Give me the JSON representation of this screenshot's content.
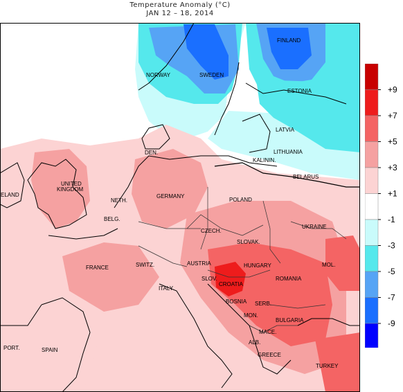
{
  "header": {
    "title": "Temperature Anomaly (°C)",
    "period": "JAN 12 – 18, 2014"
  },
  "colors": {
    "c_m9": "#0000ff",
    "c_m7": "#1a6fff",
    "c_m5": "#56a4f5",
    "c_m3": "#55e8ec",
    "c_m1": "#c9fbfb",
    "c_0": "#ffffff",
    "c_p1": "#fcd3d3",
    "c_p3": "#f5a1a1",
    "c_p5": "#f46464",
    "c_p7": "#ee1c1c",
    "c_p9": "#c80000",
    "water": "#ffffff",
    "coast": "#000000"
  },
  "legend": {
    "ticks": [
      "+9",
      "+7",
      "+5",
      "+3",
      "+1",
      "-1",
      "-3",
      "-5",
      "-7",
      "-9"
    ]
  },
  "countries": [
    {
      "label": "FINLAND"
    },
    {
      "label": "NORWAY"
    },
    {
      "label": "SWEDEN"
    },
    {
      "label": "ESTONIA"
    },
    {
      "label": "LATVIA"
    },
    {
      "label": "LITHUANIA"
    },
    {
      "label": "KALININ."
    },
    {
      "label": "BELARUS"
    },
    {
      "label": "DEN."
    },
    {
      "label": "UNITED"
    },
    {
      "label": "KINGDOM"
    },
    {
      "label": "ELAND"
    },
    {
      "label": "NETH."
    },
    {
      "label": "BELG."
    },
    {
      "label": "GERMANY"
    },
    {
      "label": "POLAND"
    },
    {
      "label": "UKRAINE"
    },
    {
      "label": "CZECH."
    },
    {
      "label": "SLOVAK."
    },
    {
      "label": "FRANCE"
    },
    {
      "label": "SWITZ."
    },
    {
      "label": "AUSTRIA"
    },
    {
      "label": "HUNGARY"
    },
    {
      "label": "MOL."
    },
    {
      "label": "SLOV."
    },
    {
      "label": "CROATIA"
    },
    {
      "label": "ROMANIA"
    },
    {
      "label": "ITALY"
    },
    {
      "label": "BOSNIA"
    },
    {
      "label": "SERB."
    },
    {
      "label": "MON."
    },
    {
      "label": "BULGARIA"
    },
    {
      "label": "MACE."
    },
    {
      "label": "ALB."
    },
    {
      "label": "GREECE"
    },
    {
      "label": "TURKEY"
    },
    {
      "label": "PORT."
    },
    {
      "label": "SPAIN"
    }
  ]
}
